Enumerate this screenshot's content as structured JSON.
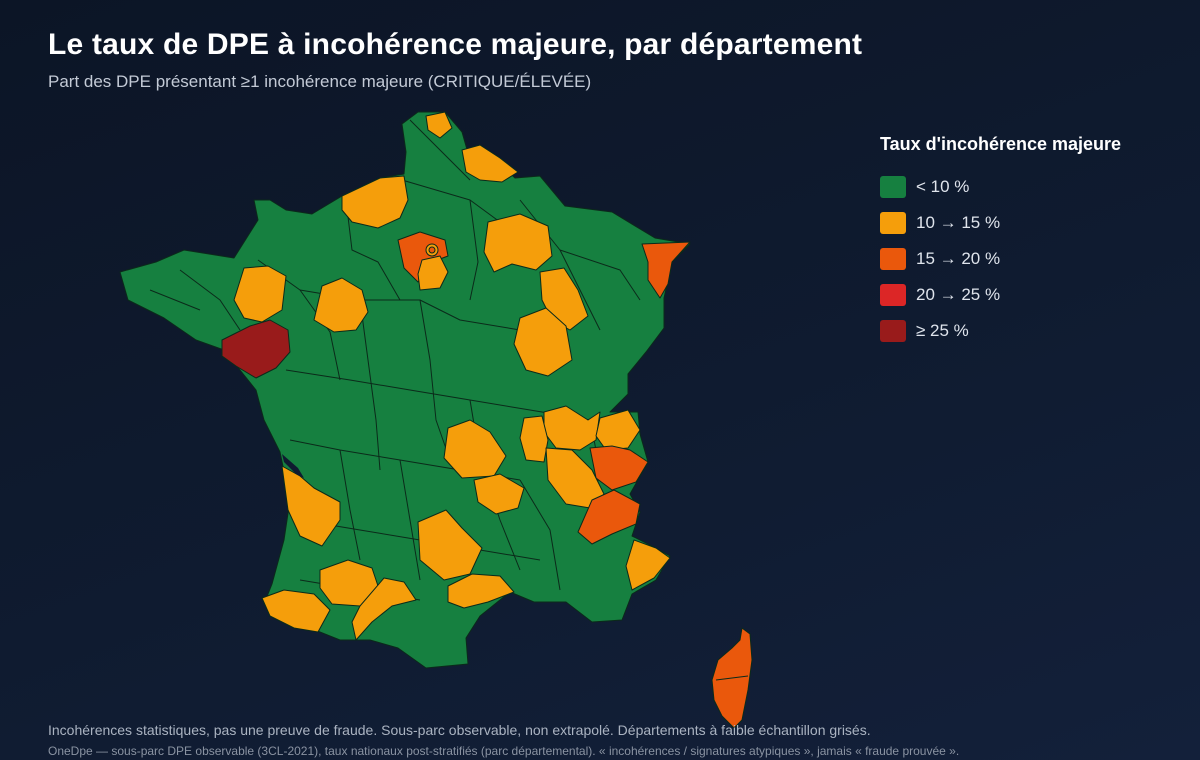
{
  "header": {
    "title": "Le taux de DPE à incohérence majeure, par département",
    "subtitle": "Part des DPE présentant ≥1 incohérence majeure (CRITIQUE/ÉLEVÉE)"
  },
  "legend": {
    "title": "Taux d'incohérence majeure",
    "items": [
      {
        "label": "< 10 %",
        "color": "#168040"
      },
      {
        "label": "10 → 15 %",
        "color": "#f59e0b"
      },
      {
        "label": "15 → 20 %",
        "color": "#ea580c"
      },
      {
        "label": "20 → 25 %",
        "color": "#dc2626"
      },
      {
        "label": "≥ 25 %",
        "color": "#991b1b"
      }
    ]
  },
  "footer": {
    "note": "Incohérences statistiques, pas une preuve de fraude. Sous-parc observable, non extrapolé. Départements à faible échantillon grisés.",
    "source": "OneDpe — sous-parc DPE observable (3CL-2021), taux nationaux post-stratifiés (parc départemental). « incohérences / signatures atypiques », jamais « fraude prouvée »."
  },
  "map": {
    "base_color": "#168040",
    "border_color": "#0b2a1a",
    "regions_highlighted": [
      {
        "name": "Pas-de-Calais littoral",
        "class": "10 → 15 %"
      },
      {
        "name": "Aisne nord",
        "class": "10 → 15 %"
      },
      {
        "name": "Seine-Maritime",
        "class": "10 → 15 %"
      },
      {
        "name": "Val-d'Oise / Yvelines",
        "class": "15 → 20 %"
      },
      {
        "name": "Essonne / Seine-et-Marne",
        "class": "10 → 15 %"
      },
      {
        "name": "Marne",
        "class": "10 → 15 %"
      },
      {
        "name": "Bas-Rhin",
        "class": "15 → 20 %"
      },
      {
        "name": "Ille-et-Vilaine",
        "class": "10 → 15 %"
      },
      {
        "name": "Sarthe",
        "class": "10 → 15 %"
      },
      {
        "name": "Loire-Atlantique",
        "class": "≥ 25 %"
      },
      {
        "name": "Haute-Marne",
        "class": "10 → 15 %"
      },
      {
        "name": "Côte-d'Or",
        "class": "10 → 15 %"
      },
      {
        "name": "Ain",
        "class": "10 → 15 %"
      },
      {
        "name": "Haute-Savoie",
        "class": "10 → 15 %"
      },
      {
        "name": "Savoie",
        "class": "15 → 20 %"
      },
      {
        "name": "Puy-de-Dôme",
        "class": "10 → 15 %"
      },
      {
        "name": "Rhône",
        "class": "10 → 15 %"
      },
      {
        "name": "Isère",
        "class": "10 → 15 %"
      },
      {
        "name": "Haute-Loire",
        "class": "10 → 15 %"
      },
      {
        "name": "Hautes-Alpes / Alpes-de-Haute-Provence",
        "class": "15 → 20 %"
      },
      {
        "name": "Alpes-Maritimes",
        "class": "10 → 15 %"
      },
      {
        "name": "Gironde",
        "class": "10 → 15 %"
      },
      {
        "name": "Lot",
        "class": "10 → 15 %"
      },
      {
        "name": "Gers",
        "class": "10 → 15 %"
      },
      {
        "name": "Pyrénées-Atlantiques",
        "class": "10 → 15 %"
      },
      {
        "name": "Haute-Garonne",
        "class": "10 → 15 %"
      },
      {
        "name": "Hérault",
        "class": "10 → 15 %"
      },
      {
        "name": "Corse",
        "class": "15 → 20 %"
      }
    ]
  }
}
